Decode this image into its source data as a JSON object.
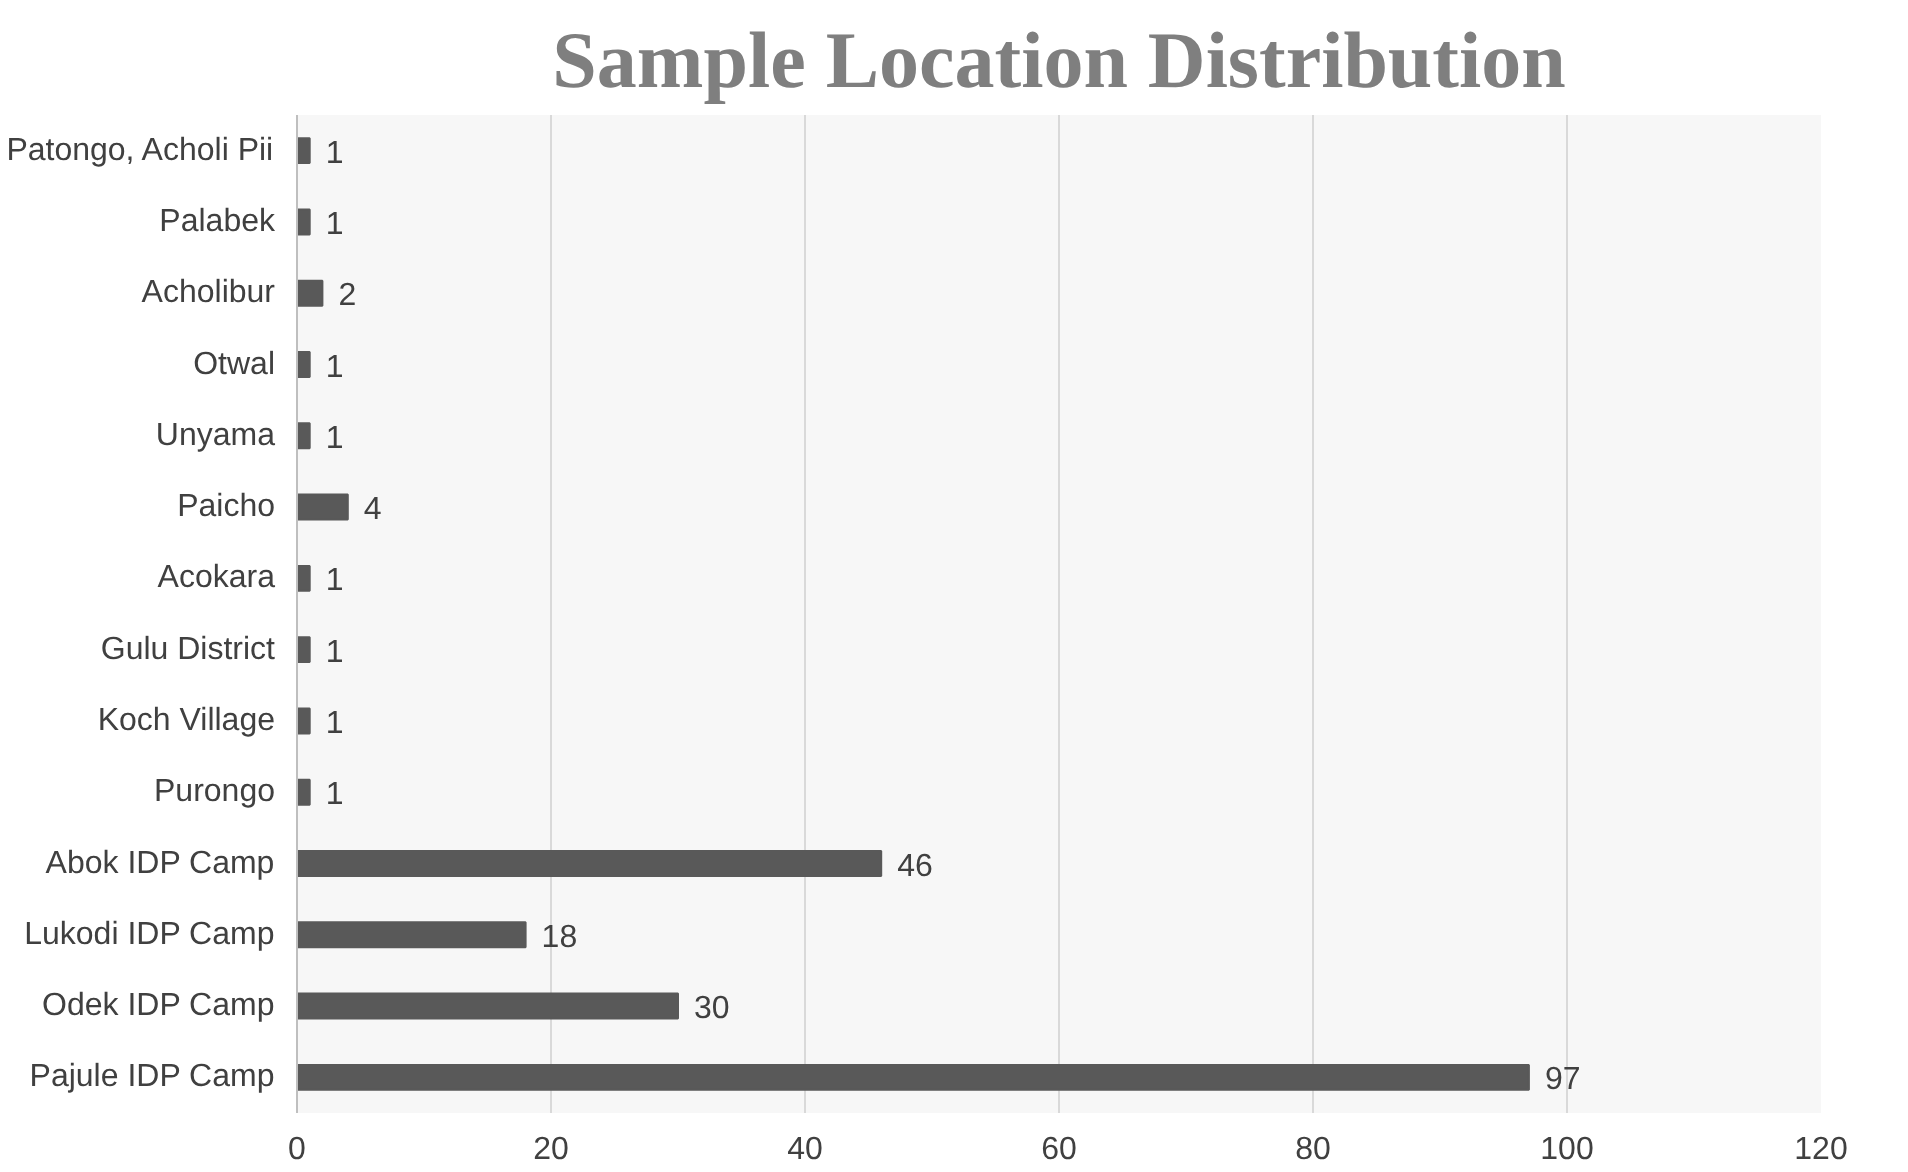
{
  "chart_data": {
    "type": "bar",
    "orientation": "horizontal",
    "title": "Sample Location Distribution",
    "categories": [
      "Patongo, Acholi Pii",
      "Palabek",
      "Acholibur",
      "Otwal",
      "Unyama",
      "Paicho",
      "Acokara",
      "Gulu District",
      "Koch Village",
      "Purongo",
      "Abok IDP Camp",
      "Lukodi IDP Camp",
      "Odek IDP Camp",
      "Pajule IDP Camp"
    ],
    "values": [
      1,
      1,
      2,
      1,
      1,
      4,
      1,
      1,
      1,
      1,
      46,
      18,
      30,
      97
    ],
    "color": "#595959",
    "xlim": [
      0,
      120
    ],
    "xticks": [
      0,
      20,
      40,
      60,
      80,
      100,
      120
    ],
    "grid": "x",
    "data_labels": true
  }
}
